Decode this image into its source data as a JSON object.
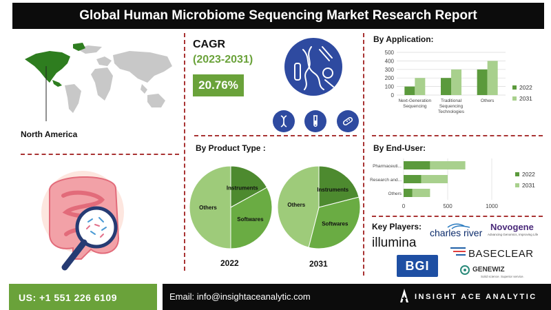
{
  "title": "Global Human Microbiome Sequencing Market Research Report",
  "region": "North America",
  "cagr": {
    "label": "CAGR",
    "period": "(2023-2031)",
    "value": "20.76%"
  },
  "colors": {
    "dark_green": "#5b9a3c",
    "light_green": "#a8d08d",
    "accent": "#6aa23a",
    "divider": "#a83232"
  },
  "icons": [
    "dna-icon",
    "test-tube-icon",
    "bacteria-icon"
  ],
  "key_players": {
    "title": "Key Players:",
    "logos": [
      "illumina",
      "charles river",
      "Novogene",
      "Advancing Genomics, Improving Life",
      "BASECLEAR",
      "BGI",
      "GENEWIZ",
      "Solid science. Superior service."
    ]
  },
  "footer": {
    "phone": "US: +1 551 226 6109",
    "email": "Email: info@insightaceanalytic.com",
    "brand": "INSIGHT ACE ANALYTIC"
  },
  "chart_data": [
    {
      "title": "By Application:",
      "type": "bar",
      "orientation": "vertical",
      "categories": [
        "Next-Generation Sequencing",
        "Traditional Sequencing Technologies",
        "Others"
      ],
      "category_lines": [
        [
          "Next-Generation",
          "Sequencing"
        ],
        [
          "Traditional",
          "Sequencing",
          "Technologies"
        ],
        [
          "Others"
        ]
      ],
      "series": [
        {
          "name": "2022",
          "color": "#5b9a3c",
          "values": [
            100,
            200,
            300
          ]
        },
        {
          "name": "2031",
          "color": "#a8d08d",
          "values": [
            200,
            300,
            400
          ]
        }
      ],
      "ylim": [
        0,
        500
      ],
      "yticks": [
        0,
        100,
        200,
        300,
        400,
        500
      ],
      "grid": true,
      "legend": "right"
    },
    {
      "title": "By End-User:",
      "type": "bar",
      "orientation": "horizontal",
      "stacked": true,
      "categories": [
        "Pharmaceuti...",
        "Research and...",
        "Others"
      ],
      "series": [
        {
          "name": "2022",
          "color": "#5b9a3c",
          "values": [
            300,
            200,
            100
          ]
        },
        {
          "name": "2031",
          "color": "#a8d08d",
          "values": [
            400,
            300,
            200
          ]
        }
      ],
      "xlim": [
        0,
        1000
      ],
      "xticks": [
        0,
        500,
        1000
      ],
      "grid": true,
      "legend": "right"
    },
    {
      "title": "By Product Type :",
      "type": "pie",
      "label": "2022",
      "slices": [
        {
          "name": "Instruments",
          "value": 17,
          "color": "#4d8a2f"
        },
        {
          "name": "Softwares",
          "value": 33,
          "color": "#6aac43"
        },
        {
          "name": "Others",
          "value": 50,
          "color": "#9ecb7a"
        }
      ]
    },
    {
      "type": "pie",
      "label": "2031",
      "slices": [
        {
          "name": "Instruments",
          "value": 21,
          "color": "#4d8a2f"
        },
        {
          "name": "Softwares",
          "value": 33,
          "color": "#6aac43"
        },
        {
          "name": "Others",
          "value": 46,
          "color": "#9ecb7a"
        }
      ]
    }
  ]
}
